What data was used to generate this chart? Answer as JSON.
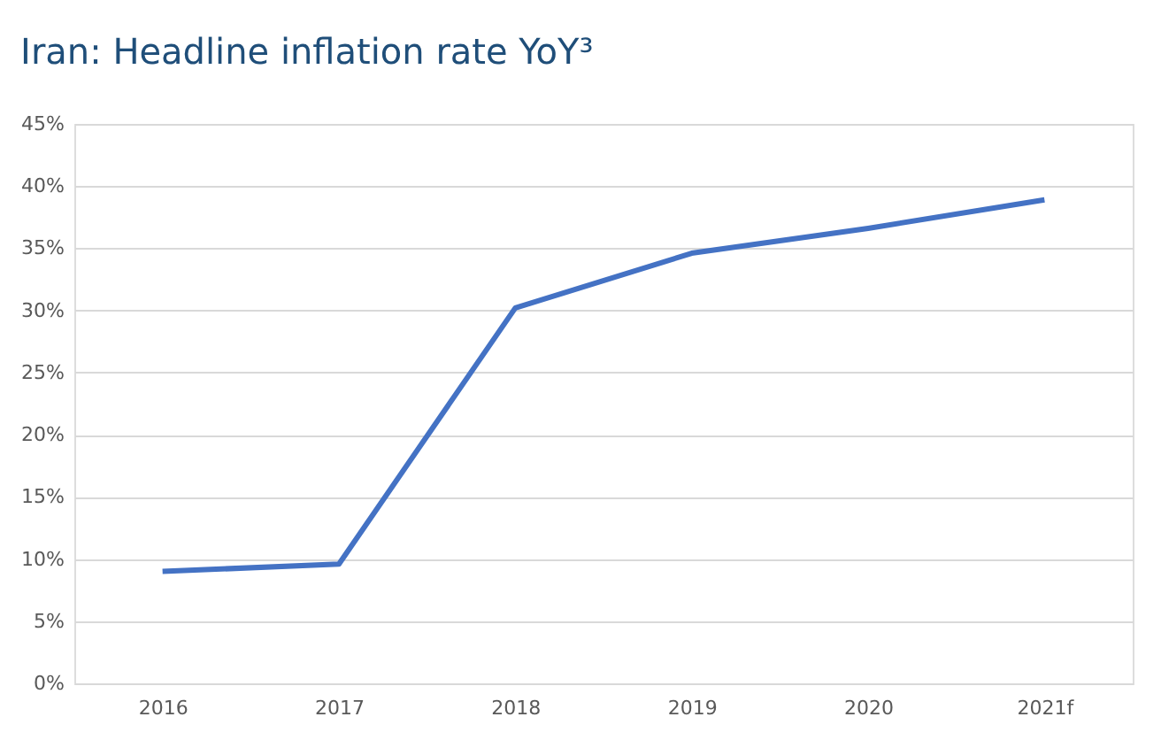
{
  "chart_data": {
    "type": "line",
    "title": "Iran: Headline inflation rate YoY³",
    "categories": [
      "2016",
      "2017",
      "2018",
      "2019",
      "2020",
      "2021f"
    ],
    "series": [
      {
        "color": "#4472c4",
        "values": [
          9.0,
          9.6,
          30.2,
          34.6,
          36.6,
          38.9
        ]
      }
    ],
    "ylim": [
      0,
      45
    ],
    "yticks": [
      {
        "value": 0,
        "label": "0%"
      },
      {
        "value": 5,
        "label": "5%"
      },
      {
        "value": 10,
        "label": "10%"
      },
      {
        "value": 15,
        "label": "15%"
      },
      {
        "value": 20,
        "label": "20%"
      },
      {
        "value": 25,
        "label": "25%"
      },
      {
        "value": 30,
        "label": "30%"
      },
      {
        "value": 35,
        "label": "35%"
      },
      {
        "value": 40,
        "label": "40%"
      },
      {
        "value": 45,
        "label": "45%"
      }
    ],
    "grid": "y",
    "marker": "none",
    "line_style": "solid"
  }
}
